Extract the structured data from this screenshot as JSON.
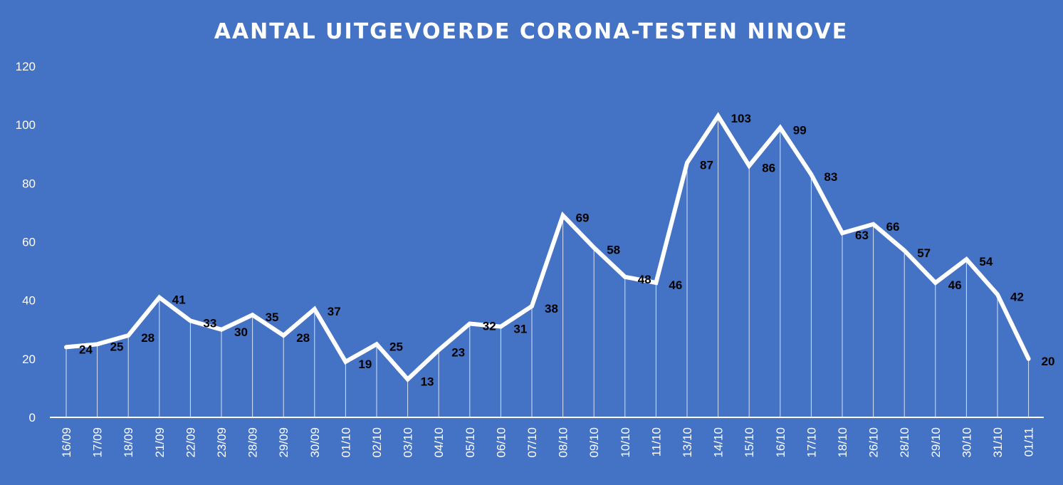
{
  "chart_data": {
    "type": "line",
    "title": "AANTAL UITGEVOERDE  CORONA-TESTEN NINOVE",
    "xlabel": "",
    "ylabel": "",
    "ylim": [
      0,
      120
    ],
    "yticks": [
      0,
      20,
      40,
      60,
      80,
      100,
      120
    ],
    "grid": false,
    "legend": "none",
    "drop_lines": true,
    "colors": {
      "background": "#4472C4",
      "line": "#ffffff",
      "labels": "#000000",
      "axis_text": "#ffffff"
    },
    "categories": [
      "16/09",
      "17/09",
      "18/09",
      "21/09",
      "22/09",
      "23/09",
      "28/09",
      "29/09",
      "30/09",
      "01/10",
      "02/10",
      "03/10",
      "04/10",
      "05/10",
      "06/10",
      "07/10",
      "08/10",
      "09/10",
      "10/10",
      "11/10",
      "13/10",
      "14/10",
      "15/10",
      "16/10",
      "17/10",
      "18/10",
      "26/10",
      "28/10",
      "29/10",
      "30/10",
      "31/10",
      "01/11"
    ],
    "values": [
      24,
      25,
      28,
      41,
      33,
      30,
      35,
      28,
      37,
      19,
      25,
      13,
      23,
      32,
      31,
      38,
      69,
      58,
      48,
      46,
      87,
      103,
      86,
      99,
      83,
      63,
      66,
      57,
      46,
      54,
      42,
      20
    ]
  }
}
